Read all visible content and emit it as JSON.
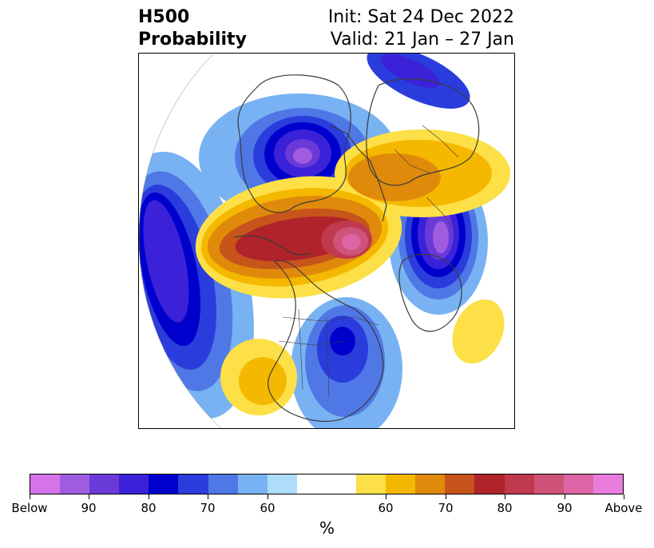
{
  "title": {
    "left_line1": "H500",
    "left_line2": "Probability",
    "right_line1": "Init: Sat 24 Dec 2022",
    "right_line2": "Valid: 21 Jan – 27 Jan"
  },
  "map": {
    "projection": "north-polar-stereographic",
    "below_colors": [
      "#d673e8",
      "#a05ce0",
      "#6a3ad8",
      "#3b22d8",
      "#0000cd",
      "#2a3ddc",
      "#4f78e6",
      "#78b2f2",
      "#aedcfb"
    ],
    "neutral_color": "#ffffff",
    "above_colors": [
      "#fde047",
      "#f5b800",
      "#e08a0b",
      "#c7541a",
      "#b0232a",
      "#c0394f",
      "#cf5279",
      "#dd64a5",
      "#e87ddd"
    ]
  },
  "colorbar": {
    "colors": [
      "#d673e8",
      "#a05ce0",
      "#6a3ad8",
      "#3b22d8",
      "#0000cd",
      "#2a3ddc",
      "#4f78e6",
      "#78b2f2",
      "#aedcfb",
      "#ffffff",
      "#ffffff",
      "#fde047",
      "#f5b800",
      "#e08a0b",
      "#c7541a",
      "#b0232a",
      "#c0394f",
      "#cf5279",
      "#dd64a5",
      "#e87ddd"
    ],
    "tick_labels": [
      "Below",
      "90",
      "80",
      "70",
      "60",
      "60",
      "70",
      "80",
      "90",
      "Above"
    ],
    "unit": "%"
  }
}
